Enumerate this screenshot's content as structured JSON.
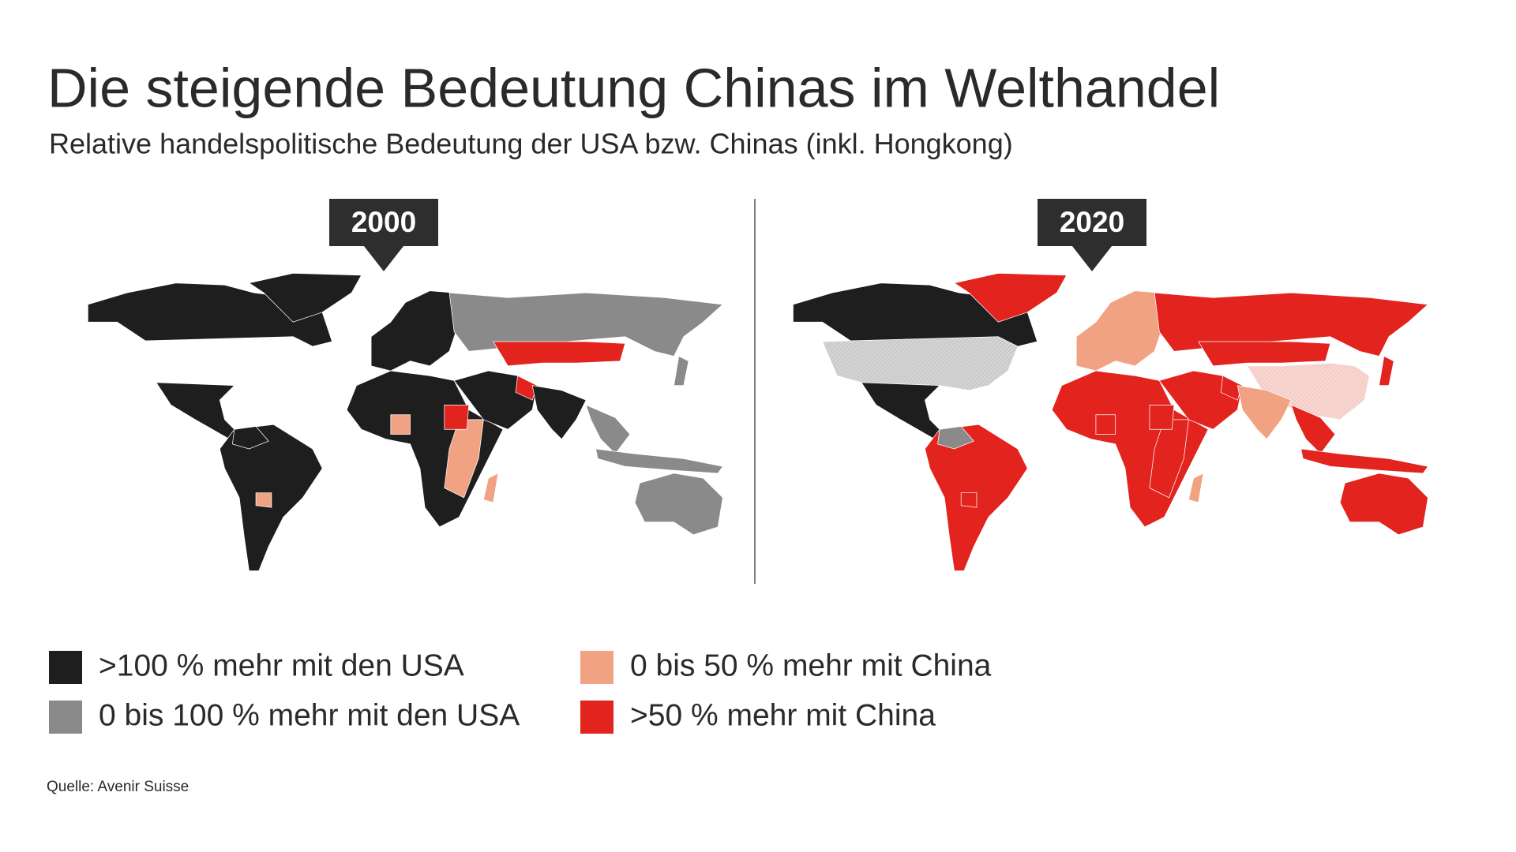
{
  "title": "Die steigende Bedeutung Chinas im Welthandel",
  "subtitle": "Relative handelspolitische Bedeutung der USA bzw. Chinas (inkl. Hongkong)",
  "maps": [
    {
      "year": "2000"
    },
    {
      "year": "2020"
    }
  ],
  "legend": {
    "items": [
      {
        "label": ">100 % mehr mit den USA",
        "color": "#1e1e1e"
      },
      {
        "label": "0 bis 100 % mehr mit den USA",
        "color": "#8a8a8a"
      },
      {
        "label": "0 bis 50 % mehr mit China",
        "color": "#f0a283"
      },
      {
        "label": ">50 % mehr mit China",
        "color": "#e2231e"
      }
    ]
  },
  "source": "Quelle: Avenir Suisse"
}
